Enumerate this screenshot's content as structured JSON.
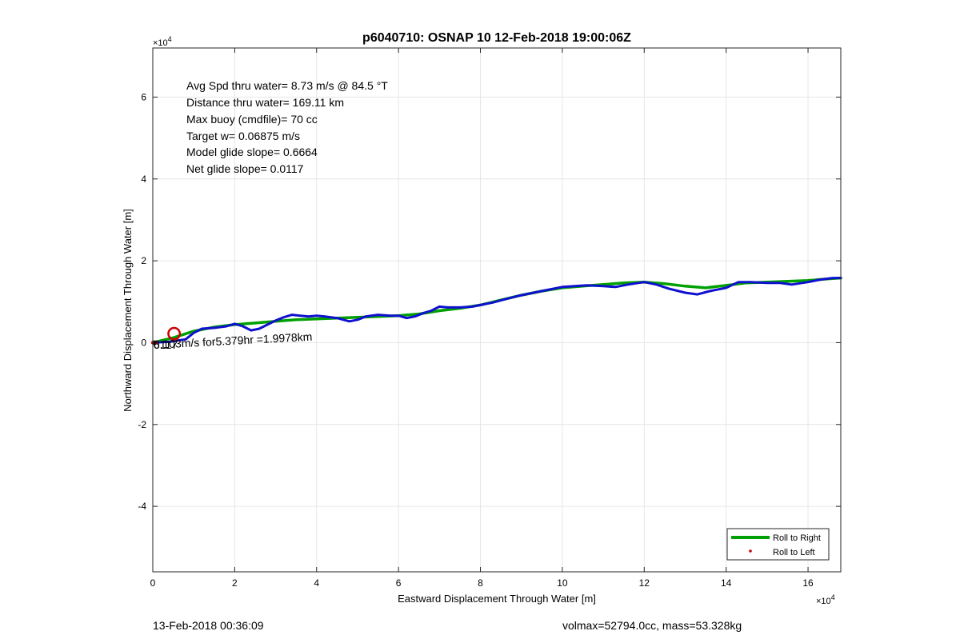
{
  "chart_data": {
    "type": "line",
    "title": "p6040710: OSNAP 10 12-Feb-2018 19:00:06Z",
    "xlabel": "Eastward Displacement Through Water [m]",
    "ylabel": "Northward Displacement Through Water [m]",
    "x_multiplier_label": "×10",
    "x_multiplier_exp": "4",
    "y_multiplier_label": "×10",
    "y_multiplier_exp": "4",
    "xlim": [
      0,
      16.8
    ],
    "ylim": [
      -5.6,
      7.2
    ],
    "x_ticks": [
      0,
      2,
      4,
      6,
      8,
      10,
      12,
      14,
      16
    ],
    "x_tick_labels": [
      "0",
      "2",
      "4",
      "6",
      "8",
      "10",
      "12",
      "14",
      "16"
    ],
    "y_ticks": [
      -4,
      -2,
      0,
      2,
      4,
      6
    ],
    "y_tick_labels": [
      "-4",
      "-2",
      "0",
      "2",
      "4",
      "6"
    ],
    "grid": true,
    "legend_position": "bottom-right",
    "series": [
      {
        "name": "Roll to Right",
        "color": "#00a000",
        "x": [
          0,
          0.5,
          1.0,
          1.5,
          2.0,
          2.5,
          3.0,
          3.5,
          4.0,
          4.5,
          5.0,
          5.5,
          6.0,
          6.5,
          7.0,
          7.5,
          8.0,
          8.5,
          9.0,
          9.5,
          10.0,
          10.5,
          11.0,
          11.5,
          12.0,
          12.5,
          13.0,
          13.5,
          14.0,
          14.5,
          15.0,
          15.5,
          16.0,
          16.5,
          16.8
        ],
        "y": [
          0.0,
          0.12,
          0.28,
          0.38,
          0.44,
          0.48,
          0.52,
          0.56,
          0.58,
          0.6,
          0.62,
          0.64,
          0.66,
          0.7,
          0.78,
          0.84,
          0.92,
          1.04,
          1.16,
          1.26,
          1.34,
          1.38,
          1.42,
          1.46,
          1.48,
          1.44,
          1.38,
          1.34,
          1.4,
          1.46,
          1.48,
          1.5,
          1.52,
          1.56,
          1.58
        ]
      },
      {
        "name": "Roll to Left",
        "color": "#cc0000",
        "x": [
          0.0,
          0.08
        ],
        "y": [
          0.0,
          0.0
        ]
      },
      {
        "name": "",
        "color": "#1010d0",
        "x": [
          0.0,
          0.4,
          0.8,
          1.0,
          1.2,
          1.5,
          1.8,
          2.0,
          2.2,
          2.4,
          2.6,
          2.8,
          3.0,
          3.2,
          3.4,
          3.6,
          3.8,
          4.0,
          4.2,
          4.5,
          4.8,
          5.0,
          5.2,
          5.5,
          5.8,
          6.0,
          6.2,
          6.4,
          6.6,
          6.8,
          7.0,
          7.2,
          7.5,
          7.8,
          8.0,
          8.3,
          8.6,
          9.0,
          9.3,
          9.6,
          10.0,
          10.3,
          10.6,
          11.0,
          11.3,
          11.6,
          12.0,
          12.3,
          12.6,
          13.0,
          13.3,
          13.6,
          14.0,
          14.3,
          14.6,
          15.0,
          15.3,
          15.6,
          16.0,
          16.3,
          16.6,
          16.8
        ],
        "y": [
          0.0,
          0.02,
          0.08,
          0.24,
          0.34,
          0.36,
          0.4,
          0.46,
          0.4,
          0.3,
          0.34,
          0.44,
          0.54,
          0.62,
          0.68,
          0.66,
          0.64,
          0.66,
          0.64,
          0.6,
          0.52,
          0.56,
          0.64,
          0.68,
          0.66,
          0.66,
          0.6,
          0.64,
          0.72,
          0.78,
          0.88,
          0.86,
          0.86,
          0.88,
          0.92,
          0.98,
          1.06,
          1.16,
          1.22,
          1.28,
          1.36,
          1.38,
          1.4,
          1.38,
          1.36,
          1.42,
          1.48,
          1.42,
          1.32,
          1.22,
          1.18,
          1.26,
          1.34,
          1.48,
          1.48,
          1.46,
          1.46,
          1.42,
          1.48,
          1.54,
          1.58,
          1.58
        ]
      }
    ],
    "loop_marker": {
      "x": 0.52,
      "y": 0.22,
      "rx": 0.14,
      "ry": 0.14,
      "color": "#cc0000"
    },
    "info_lines": [
      "Avg Spd thru water=  8.73 m/s @  84.5 °T",
      "Distance thru water= 169.11 km",
      "Max buoy (cmdfile)= 70 cc",
      "Target w= 0.06875 m/s",
      "Model glide slope= 0.6664",
      "Net glide slope= 0.0117"
    ],
    "overlay_labels": {
      "current_text": "0.103m/s for5.379hr =1.9978km",
      "overlap_text": "6117"
    }
  },
  "footer": {
    "timestamp": "13-Feb-2018 00:36:09",
    "volmax_mass": "volmax=52794.0cc, mass=53.328kg"
  }
}
